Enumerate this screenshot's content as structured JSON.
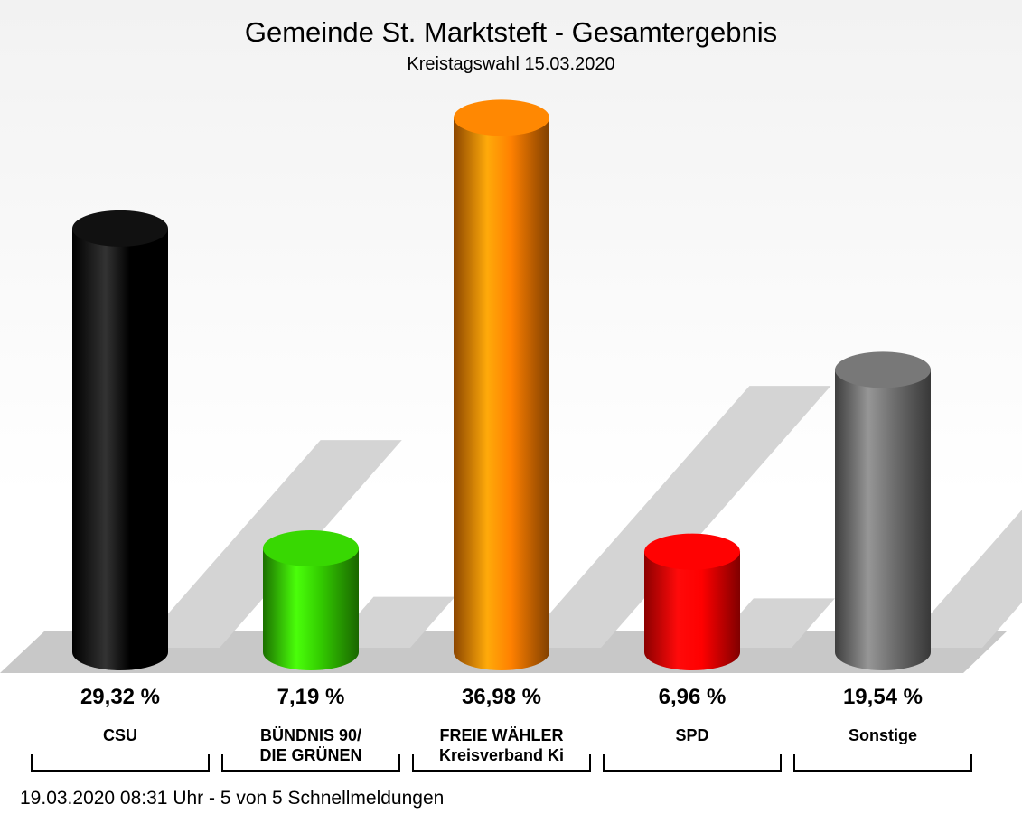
{
  "chart_data": {
    "type": "bar3d",
    "title": "Gemeinde St. Marktsteft - Gesamtergebnis",
    "subtitle": "Kreistagswahl 15.03.2020",
    "categories": [
      "CSU",
      "BÜNDNIS 90/\nDIE GRÜNEN",
      "FREIE WÄHLER\nKreisverband Ki",
      "SPD",
      "Sonstige"
    ],
    "values": [
      29.32,
      7.19,
      36.98,
      6.96,
      19.54
    ],
    "value_labels": [
      "29,32 %",
      "7,19 %",
      "36,98 %",
      "6,96 %",
      "19,54 %"
    ],
    "colors": [
      "#000000",
      "#33cc00",
      "#ff8000",
      "#ff0000",
      "#707070"
    ],
    "footer": "19.03.2020 08:31 Uhr - 5 von 5 Schnellmeldungen"
  }
}
